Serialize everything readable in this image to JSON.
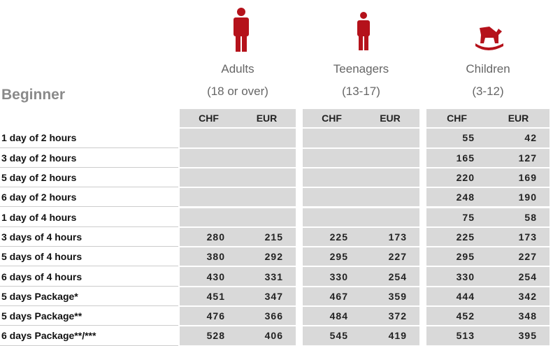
{
  "header": {
    "title": "Beginner",
    "groups": [
      {
        "name": "Adults",
        "range": "(18 or over)"
      },
      {
        "name": "Teenagers",
        "range": "(13-17)"
      },
      {
        "name": "Children",
        "range": "(3-12)"
      }
    ],
    "currencies": [
      "CHF",
      "EUR",
      "CHF",
      "EUR",
      "CHF",
      "EUR"
    ]
  },
  "table": {
    "rows": [
      {
        "label": "1 day of 2 hours",
        "cells": [
          null,
          null,
          null,
          null,
          55,
          42
        ]
      },
      {
        "label": "3 day of 2 hours",
        "cells": [
          null,
          null,
          null,
          null,
          165,
          127
        ]
      },
      {
        "label": "5 day of 2 hours",
        "cells": [
          null,
          null,
          null,
          null,
          220,
          169
        ]
      },
      {
        "label": "6 day of 2 hours",
        "cells": [
          null,
          null,
          null,
          null,
          248,
          190
        ]
      },
      {
        "label": "1 day of 4 hours",
        "cells": [
          null,
          null,
          null,
          null,
          75,
          58
        ]
      },
      {
        "label": "3 days of 4 hours",
        "cells": [
          280,
          215,
          225,
          173,
          225,
          173
        ]
      },
      {
        "label": "5 days of 4 hours",
        "cells": [
          380,
          292,
          295,
          227,
          295,
          227
        ]
      },
      {
        "label": "6 days of 4 hours",
        "cells": [
          430,
          331,
          330,
          254,
          330,
          254
        ]
      },
      {
        "label": "5 days Package*",
        "cells": [
          451,
          347,
          467,
          359,
          444,
          342
        ]
      },
      {
        "label": "5 days Package**",
        "cells": [
          476,
          366,
          484,
          372,
          452,
          348
        ]
      },
      {
        "label": "6 days Package**/***",
        "cells": [
          528,
          406,
          545,
          419,
          513,
          395
        ]
      }
    ]
  }
}
